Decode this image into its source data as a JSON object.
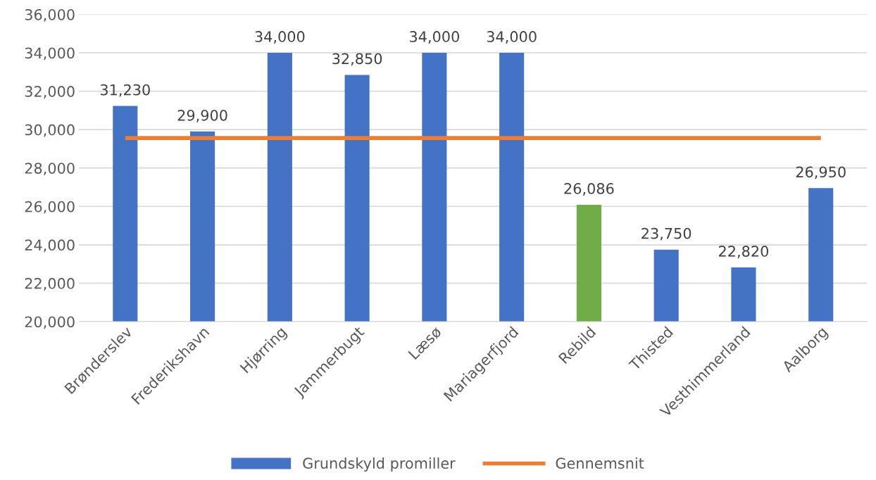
{
  "chart_data": {
    "type": "bar",
    "categories": [
      "Brønderslev",
      "Frederikshavn",
      "Hjørring",
      "Jammerbugt",
      "Læsø",
      "Mariagerfjord",
      "Rebild",
      "Thisted",
      "Vesthimmerland",
      "Aalborg"
    ],
    "series": [
      {
        "name": "Grundskyld promiller",
        "color": "#4472c4",
        "colors": [
          "#4472c4",
          "#4472c4",
          "#4472c4",
          "#4472c4",
          "#4472c4",
          "#4472c4",
          "#70ad47",
          "#4472c4",
          "#4472c4",
          "#4472c4"
        ],
        "values": [
          31230,
          29900,
          34000,
          32850,
          34000,
          34000,
          26086,
          23750,
          22820,
          26950
        ],
        "value_labels": [
          "31,230",
          "29,900",
          "34,000",
          "32,850",
          "34,000",
          "34,000",
          "26,086",
          "23,750",
          "22,820",
          "26,950"
        ]
      },
      {
        "name": "Gennemsnit",
        "type": "line",
        "color": "#ed7d31",
        "values": [
          29560,
          29560,
          29560,
          29560,
          29560,
          29560,
          29560,
          29560,
          29560,
          29560
        ]
      }
    ],
    "ylim": [
      20000,
      36000
    ],
    "yticks": [
      {
        "value": 20000,
        "label": "20,000"
      },
      {
        "value": 22000,
        "label": "22,000"
      },
      {
        "value": 24000,
        "label": "24,000"
      },
      {
        "value": 26000,
        "label": "26,000"
      },
      {
        "value": 28000,
        "label": "28,000"
      },
      {
        "value": 30000,
        "label": "30,000"
      },
      {
        "value": 32000,
        "label": "32,000"
      },
      {
        "value": 34000,
        "label": "34,000"
      },
      {
        "value": 36000,
        "label": "36,000"
      }
    ],
    "grid": "y",
    "legend": "bottom"
  }
}
